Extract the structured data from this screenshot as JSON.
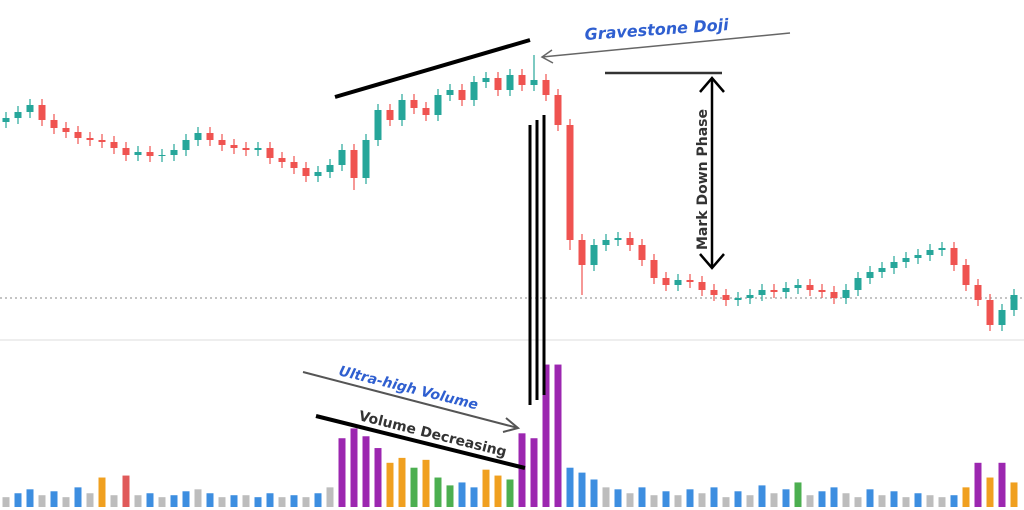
{
  "chart_data": {
    "type": "candlestick",
    "annotations": {
      "gravestone": "Gravestone Doji",
      "markdown": "Mark Down Phase",
      "ultra": "Ultra-high Volume",
      "decreasing": "Volume Decreasing"
    },
    "up_color": "#26a69a",
    "down_color": "#ef5350",
    "ylim": [
      60,
      400
    ],
    "reference_line": 102,
    "open": [
      278,
      282,
      288,
      295,
      280,
      272,
      268,
      262,
      260,
      258,
      252,
      245,
      248,
      244,
      245,
      250,
      260,
      267,
      260,
      255,
      252,
      250,
      252,
      242,
      238,
      232,
      224,
      228,
      235,
      250,
      222,
      260,
      290,
      280,
      300,
      292,
      285,
      305,
      310,
      300,
      318,
      322,
      310,
      325,
      315,
      320,
      305,
      275,
      160,
      135,
      155,
      160,
      162,
      155,
      140,
      122,
      115,
      120,
      118,
      110,
      105,
      100,
      102,
      105,
      110,
      108,
      112,
      115,
      110,
      108,
      102,
      110,
      122,
      128,
      132,
      138,
      142,
      145,
      150,
      152,
      135,
      115,
      100,
      75,
      90
    ],
    "high": [
      288,
      294,
      301,
      301,
      286,
      278,
      274,
      268,
      266,
      264,
      258,
      254,
      254,
      251,
      256,
      266,
      273,
      273,
      266,
      261,
      258,
      258,
      258,
      248,
      244,
      238,
      234,
      241,
      256,
      256,
      266,
      296,
      296,
      306,
      306,
      298,
      311,
      316,
      316,
      324,
      328,
      328,
      331,
      331,
      345,
      326,
      311,
      281,
      166,
      161,
      166,
      168,
      168,
      161,
      146,
      128,
      126,
      126,
      124,
      116,
      111,
      108,
      111,
      116,
      116,
      118,
      121,
      121,
      116,
      114,
      116,
      128,
      134,
      138,
      144,
      148,
      151,
      156,
      158,
      158,
      141,
      121,
      106,
      96,
      111
    ],
    "low": [
      272,
      276,
      282,
      274,
      266,
      262,
      256,
      254,
      252,
      246,
      239,
      239,
      238,
      238,
      239,
      244,
      254,
      254,
      249,
      246,
      244,
      244,
      236,
      232,
      226,
      218,
      218,
      222,
      229,
      210,
      216,
      254,
      274,
      274,
      286,
      279,
      279,
      299,
      294,
      294,
      312,
      304,
      304,
      309,
      309,
      299,
      269,
      150,
      105,
      129,
      149,
      154,
      149,
      134,
      116,
      109,
      109,
      112,
      104,
      99,
      94,
      94,
      96,
      99,
      102,
      102,
      106,
      104,
      102,
      96,
      96,
      104,
      116,
      122,
      126,
      132,
      136,
      139,
      144,
      129,
      109,
      94,
      69,
      69,
      84
    ],
    "close": [
      282,
      288,
      295,
      280,
      272,
      268,
      262,
      260,
      258,
      252,
      245,
      248,
      244,
      245,
      250,
      260,
      267,
      260,
      255,
      252,
      250,
      252,
      242,
      238,
      232,
      224,
      228,
      235,
      250,
      222,
      260,
      290,
      280,
      300,
      292,
      285,
      305,
      310,
      300,
      318,
      322,
      310,
      325,
      315,
      320,
      305,
      275,
      160,
      135,
      155,
      160,
      162,
      155,
      140,
      122,
      115,
      120,
      118,
      110,
      105,
      100,
      102,
      105,
      110,
      108,
      112,
      115,
      110,
      108,
      102,
      110,
      122,
      128,
      132,
      138,
      142,
      145,
      150,
      152,
      135,
      115,
      100,
      75,
      90,
      105
    ],
    "volume_ylim": [
      0,
      170
    ],
    "volume": [
      10,
      14,
      18,
      12,
      16,
      10,
      20,
      14,
      30,
      12,
      32,
      12,
      14,
      10,
      12,
      16,
      18,
      14,
      10,
      12,
      12,
      10,
      14,
      10,
      12,
      10,
      14,
      20,
      70,
      80,
      72,
      60,
      45,
      50,
      40,
      48,
      30,
      22,
      25,
      20,
      38,
      32,
      28,
      75,
      70,
      145,
      145,
      40,
      35,
      28,
      20,
      18,
      14,
      20,
      12,
      16,
      12,
      18,
      14,
      20,
      10,
      16,
      12,
      22,
      14,
      18,
      25,
      12,
      16,
      20,
      14,
      10,
      18,
      12,
      16,
      10,
      14,
      12,
      10,
      12,
      20,
      45,
      30,
      45,
      25
    ],
    "volume_colors": [
      "#bdbdbd",
      "#3d8ee0",
      "#3d8ee0",
      "#bdbdbd",
      "#3d8ee0",
      "#bdbdbd",
      "#3d8ee0",
      "#bdbdbd",
      "#f0a020",
      "#bdbdbd",
      "#e05a5a",
      "#bdbdbd",
      "#3d8ee0",
      "#bdbdbd",
      "#3d8ee0",
      "#3d8ee0",
      "#bdbdbd",
      "#3d8ee0",
      "#bdbdbd",
      "#3d8ee0",
      "#bdbdbd",
      "#3d8ee0",
      "#3d8ee0",
      "#bdbdbd",
      "#3d8ee0",
      "#bdbdbd",
      "#3d8ee0",
      "#bdbdbd",
      "#9c27b0",
      "#9c27b0",
      "#9c27b0",
      "#9c27b0",
      "#f0a020",
      "#f0a020",
      "#4caf50",
      "#f0a020",
      "#4caf50",
      "#4caf50",
      "#3d8ee0",
      "#3d8ee0",
      "#f0a020",
      "#f0a020",
      "#4caf50",
      "#9c27b0",
      "#9c27b0",
      "#9c27b0",
      "#9c27b0",
      "#3d8ee0",
      "#3d8ee0",
      "#3d8ee0",
      "#bdbdbd",
      "#3d8ee0",
      "#bdbdbd",
      "#3d8ee0",
      "#bdbdbd",
      "#3d8ee0",
      "#bdbdbd",
      "#3d8ee0",
      "#bdbdbd",
      "#3d8ee0",
      "#bdbdbd",
      "#3d8ee0",
      "#bdbdbd",
      "#3d8ee0",
      "#bdbdbd",
      "#3d8ee0",
      "#4caf50",
      "#bdbdbd",
      "#3d8ee0",
      "#3d8ee0",
      "#bdbdbd",
      "#bdbdbd",
      "#3d8ee0",
      "#bdbdbd",
      "#3d8ee0",
      "#bdbdbd",
      "#3d8ee0",
      "#bdbdbd",
      "#bdbdbd",
      "#3d8ee0",
      "#f0a020",
      "#9c27b0",
      "#f0a020",
      "#9c27b0",
      "#f0a020"
    ]
  }
}
